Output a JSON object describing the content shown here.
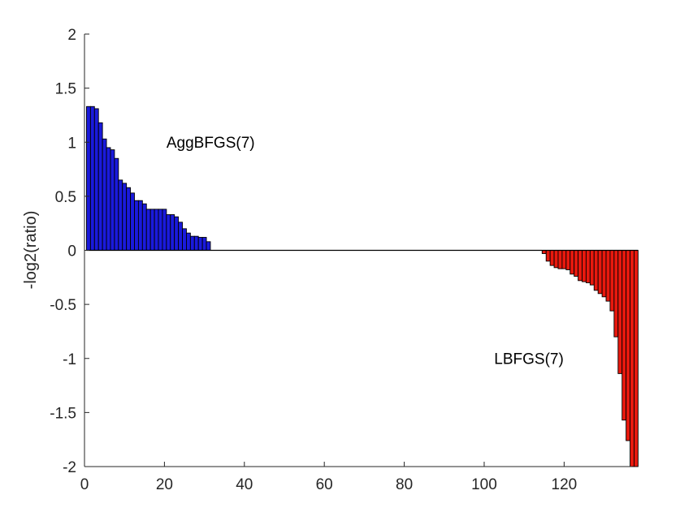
{
  "chart_data": {
    "type": "bar",
    "ylabel": "-log2(ratio)",
    "xlabel": "",
    "title": "",
    "xlim": [
      0,
      137
    ],
    "ylim": [
      -2,
      2
    ],
    "x_ticks": [
      0,
      20,
      40,
      60,
      80,
      100,
      120
    ],
    "y_ticks": [
      2,
      1.5,
      1,
      0.5,
      0,
      -0.5,
      -1,
      -1.5,
      -2
    ],
    "grid": false,
    "annotations": [
      {
        "text": "AggBFGS(7)",
        "x": 20.5,
        "y": 0.95
      },
      {
        "text": "LBFGS(7)",
        "x": 102.5,
        "y": -1.05
      }
    ],
    "colors": {
      "positive": "#1a1adc",
      "negative": "#e8190e",
      "edge": "#000000"
    },
    "series": [
      {
        "values": [
          1.33,
          1.33,
          1.31,
          1.18,
          1.03,
          0.95,
          0.93,
          0.85,
          0.65,
          0.62,
          0.58,
          0.53,
          0.46,
          0.46,
          0.43,
          0.38,
          0.38,
          0.38,
          0.38,
          0.38,
          0.33,
          0.33,
          0.31,
          0.26,
          0.2,
          0.16,
          0.13,
          0.13,
          0.12,
          0.12,
          0.08,
          0,
          0,
          0,
          0,
          0,
          0,
          0,
          0,
          0,
          0,
          0,
          0,
          0,
          0,
          0,
          0,
          0,
          0,
          0,
          0,
          0,
          0,
          0,
          0,
          0,
          0,
          0,
          0,
          0,
          0,
          0,
          0,
          0,
          0,
          0,
          0,
          0,
          0,
          0,
          0,
          0,
          0,
          0,
          0,
          0,
          0,
          0,
          0,
          0,
          0,
          0,
          0,
          0,
          0,
          0,
          0,
          0,
          0,
          0,
          0,
          0,
          0,
          0,
          0,
          0,
          0,
          0,
          0,
          0,
          0,
          0,
          0,
          0,
          0,
          0,
          0,
          0,
          0,
          0,
          0,
          0,
          0,
          0,
          -0.03,
          -0.1,
          -0.14,
          -0.16,
          -0.17,
          -0.17,
          -0.18,
          -0.22,
          -0.24,
          -0.28,
          -0.29,
          -0.3,
          -0.32,
          -0.37,
          -0.4,
          -0.43,
          -0.47,
          -0.56,
          -0.8,
          -1.14,
          -1.57,
          -1.76,
          -2.0,
          -2.0
        ]
      }
    ]
  }
}
